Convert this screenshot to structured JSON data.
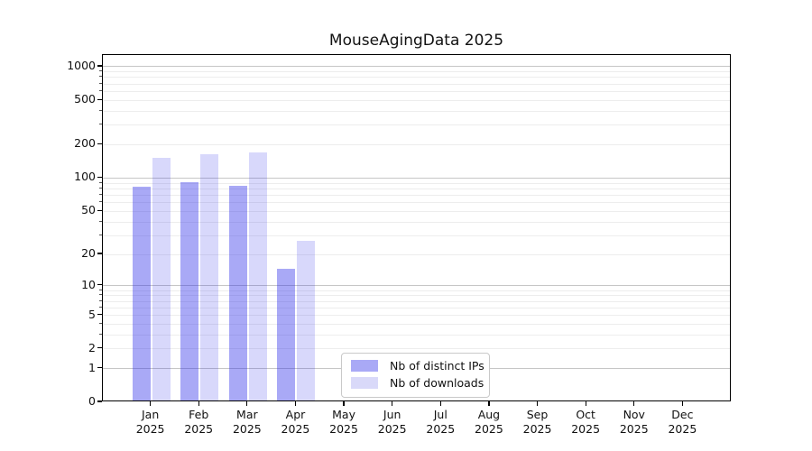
{
  "chart_data": {
    "type": "bar",
    "title": "MouseAgingData 2025",
    "xlabel": "",
    "ylabel": "",
    "yscale": "log1p",
    "ylim": [
      0,
      1250
    ],
    "grid": true,
    "legend_position": "lower-center",
    "categories": [
      {
        "month": "Jan",
        "year": "2025"
      },
      {
        "month": "Feb",
        "year": "2025"
      },
      {
        "month": "Mar",
        "year": "2025"
      },
      {
        "month": "Apr",
        "year": "2025"
      },
      {
        "month": "May",
        "year": "2025"
      },
      {
        "month": "Jun",
        "year": "2025"
      },
      {
        "month": "Jul",
        "year": "2025"
      },
      {
        "month": "Aug",
        "year": "2025"
      },
      {
        "month": "Sep",
        "year": "2025"
      },
      {
        "month": "Oct",
        "year": "2025"
      },
      {
        "month": "Nov",
        "year": "2025"
      },
      {
        "month": "Dec",
        "year": "2025"
      }
    ],
    "yticks": [
      0,
      1,
      2,
      5,
      10,
      20,
      50,
      100,
      200,
      500,
      1000
    ],
    "ytick_labels": [
      "0",
      "1",
      "2",
      "5",
      "10",
      "20",
      "50",
      "100",
      "200",
      "500",
      "1000"
    ],
    "series": [
      {
        "name": "Nb of distinct IPs",
        "legend_color": "#a9a9f6",
        "fill": "rgba(41,41,232,0.40)",
        "values": [
          80,
          89,
          82,
          14,
          0,
          0,
          0,
          0,
          0,
          0,
          0,
          0
        ]
      },
      {
        "name": "Nb of downloads",
        "legend_color": "#d9d9f9",
        "fill": "rgba(41,41,232,0.18)",
        "values": [
          146,
          158,
          163,
          26,
          0,
          0,
          0,
          0,
          0,
          0,
          0,
          0
        ]
      }
    ],
    "colors": {
      "axis": "#000000",
      "grid_major": "#c6c6c6",
      "grid_minor": "#ededed",
      "background": "#ffffff"
    }
  }
}
